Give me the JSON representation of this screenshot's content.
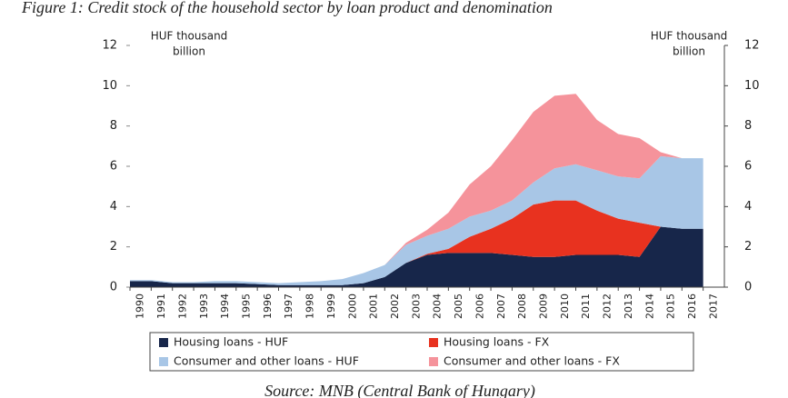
{
  "chart_data": {
    "type": "area",
    "stacked": true,
    "title": "Figure 1: Credit stock of the household sector by loan product and denomination",
    "ylabel": [
      "HUF thousand",
      "billion"
    ],
    "y2label": [
      "HUF thousand",
      "billion"
    ],
    "source": "Source: MNB (Central Bank of Hungary)",
    "x": [
      1990,
      1991,
      1992,
      1993,
      1994,
      1995,
      1996,
      1997,
      1998,
      1999,
      2000,
      2001,
      2002,
      2003,
      2004,
      2005,
      2006,
      2007,
      2008,
      2009,
      2010,
      2011,
      2012,
      2013,
      2014,
      2015,
      2016,
      2017
    ],
    "xlim": [
      1990,
      2018
    ],
    "xticks": [
      1990,
      1991,
      1992,
      1993,
      1994,
      1995,
      1996,
      1997,
      1998,
      1999,
      2000,
      2001,
      2002,
      2003,
      2004,
      2005,
      2006,
      2007,
      2008,
      2009,
      2010,
      2011,
      2012,
      2013,
      2014,
      2015,
      2016,
      2017
    ],
    "ylim": [
      0,
      12
    ],
    "yticks": [
      0,
      2,
      4,
      6,
      8,
      10,
      12
    ],
    "y2lim": [
      0,
      12
    ],
    "y2ticks": [
      0,
      2,
      4,
      6,
      8,
      10,
      12
    ],
    "series": [
      {
        "name": "Housing loans - HUF",
        "color": "#17264a",
        "values": [
          0.3,
          0.3,
          0.2,
          0.2,
          0.2,
          0.2,
          0.15,
          0.1,
          0.1,
          0.1,
          0.1,
          0.2,
          0.5,
          1.2,
          1.6,
          1.7,
          1.7,
          1.7,
          1.6,
          1.5,
          1.5,
          1.6,
          1.6,
          1.6,
          1.5,
          3.0,
          2.9,
          2.9
        ]
      },
      {
        "name": "Housing loans - FX",
        "color": "#e8321f",
        "values": [
          0,
          0,
          0,
          0,
          0,
          0,
          0,
          0,
          0,
          0,
          0,
          0,
          0,
          0,
          0.05,
          0.2,
          0.8,
          1.2,
          1.8,
          2.6,
          2.8,
          2.7,
          2.2,
          1.8,
          1.7,
          0,
          0,
          0
        ]
      },
      {
        "name": "Consumer and other loans - HUF",
        "color": "#a8c6e6",
        "values": [
          0.05,
          0.05,
          0.05,
          0.05,
          0.1,
          0.1,
          0.1,
          0.1,
          0.15,
          0.2,
          0.3,
          0.5,
          0.6,
          0.9,
          0.9,
          1.0,
          1.0,
          0.9,
          0.9,
          1.1,
          1.6,
          1.8,
          2.0,
          2.1,
          2.2,
          3.5,
          3.5,
          3.5
        ]
      },
      {
        "name": "Consumer and other loans - FX",
        "color": "#f5939b",
        "values": [
          0,
          0,
          0,
          0,
          0,
          0,
          0,
          0,
          0,
          0,
          0,
          0,
          0,
          0.1,
          0.3,
          0.8,
          1.6,
          2.2,
          3.0,
          3.5,
          3.6,
          3.5,
          2.5,
          2.1,
          2.0,
          0.2,
          0,
          0
        ]
      }
    ],
    "legend": "bottom"
  }
}
